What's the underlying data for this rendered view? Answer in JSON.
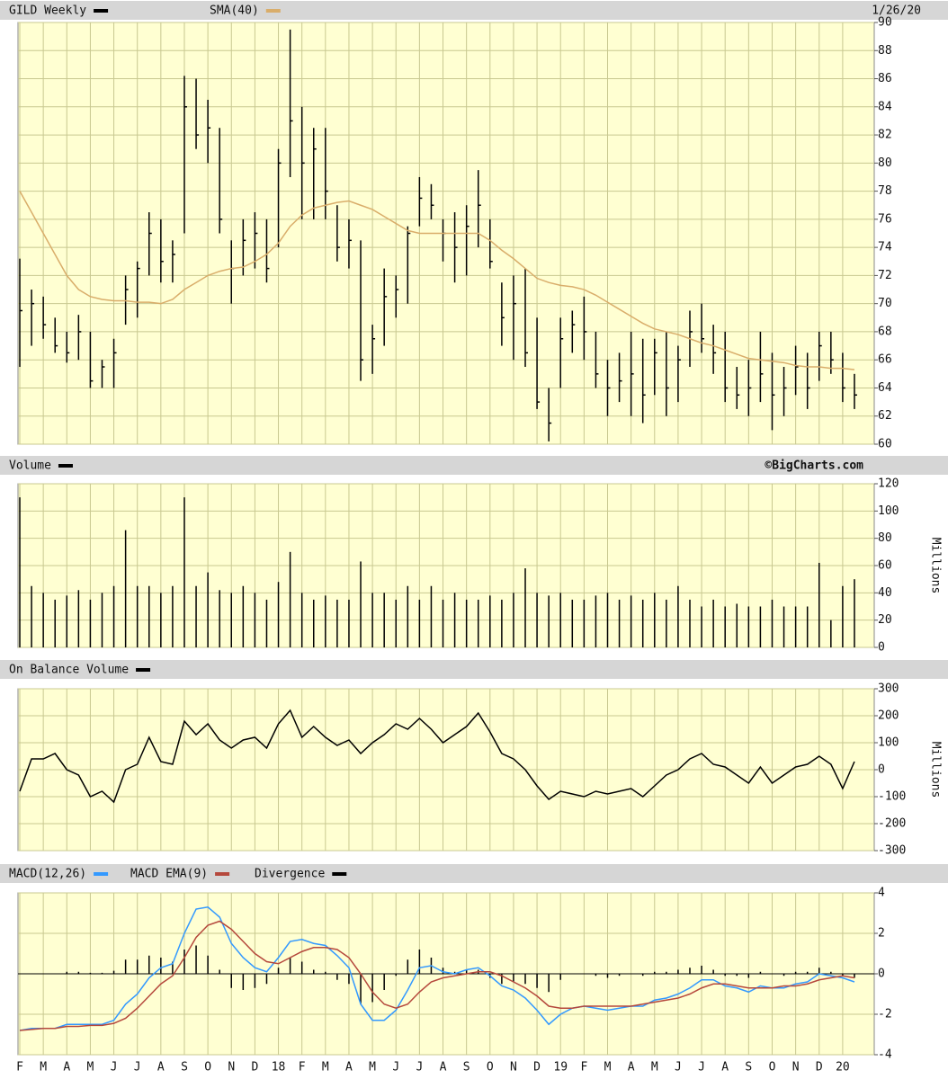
{
  "chart_data": [
    {
      "type": "ohlc",
      "date": "1/26/20",
      "series": [
        {
          "name": "GILD Weekly",
          "color": "#000000",
          "high": [
            73.2,
            71,
            70.5,
            69,
            68,
            69.2,
            68,
            66,
            67.5,
            72,
            73,
            76.5,
            76,
            74.5,
            86.2,
            86,
            84.5,
            82.5,
            74.5,
            76,
            76.5,
            76,
            81,
            89.5,
            84,
            82.5,
            82.5,
            77,
            76,
            74.5,
            68.5,
            72.5,
            72,
            75.5,
            79,
            78.5,
            76,
            76.5,
            77,
            79.5,
            76,
            71.5,
            72,
            72.5,
            69,
            64,
            69,
            69.5,
            70.5,
            68,
            66,
            66.5,
            68,
            67.5,
            67.5,
            68,
            67,
            69.5,
            70,
            68.5,
            68,
            65.5,
            66,
            68,
            66.5,
            65.5,
            67,
            66.5,
            68,
            68,
            66.5,
            65
          ],
          "low": [
            65.5,
            67,
            67.5,
            66.5,
            65.8,
            66,
            64,
            64,
            64,
            68.5,
            69,
            72,
            71.5,
            71.5,
            75,
            81,
            80,
            75,
            70,
            72,
            72.5,
            71.5,
            74,
            79,
            76,
            76,
            76,
            73,
            72.5,
            64.5,
            65,
            67,
            69,
            70,
            75.5,
            76,
            73,
            71.5,
            72,
            74,
            72.5,
            67,
            66,
            65.5,
            62.5,
            60.2,
            64,
            66.5,
            66,
            64,
            62,
            63,
            62,
            61.5,
            63.5,
            62,
            63,
            65.5,
            66.5,
            65,
            63,
            62.5,
            62,
            63,
            61,
            62,
            63.5,
            62.5,
            64.5,
            65,
            63,
            62.5
          ],
          "close": [
            69.5,
            70,
            68.5,
            67,
            66.5,
            68,
            64.5,
            65.5,
            66.5,
            71,
            72.5,
            75,
            73,
            73.5,
            84,
            82,
            82.5,
            76,
            72.5,
            74.5,
            75,
            72.5,
            80,
            83,
            80,
            81,
            78,
            74,
            74.5,
            66,
            67.5,
            70.5,
            71,
            75,
            77.5,
            77,
            75,
            74,
            75.5,
            77,
            73,
            69,
            70,
            66.5,
            63,
            61.5,
            67.5,
            68.5,
            68,
            65,
            64,
            64.5,
            65,
            63.5,
            66.5,
            64,
            66,
            68,
            67.5,
            66.5,
            64,
            63.5,
            64,
            65,
            63.5,
            64,
            65.5,
            64,
            67,
            66,
            64,
            63.5
          ]
        },
        {
          "name": "SMA(40)",
          "color": "#d9ad6a",
          "values": [
            78,
            76.5,
            75,
            73.5,
            72,
            71,
            70.5,
            70.3,
            70.2,
            70.2,
            70.1,
            70.1,
            70,
            70.3,
            71,
            71.5,
            72,
            72.3,
            72.5,
            72.6,
            73,
            73.5,
            74.3,
            75.5,
            76.3,
            76.8,
            77,
            77.2,
            77.3,
            77,
            76.7,
            76.2,
            75.7,
            75.2,
            75,
            75,
            75,
            75,
            75,
            75,
            74.5,
            73.8,
            73.2,
            72.5,
            71.8,
            71.5,
            71.3,
            71.2,
            71,
            70.6,
            70.1,
            69.6,
            69.1,
            68.6,
            68.2,
            68,
            67.8,
            67.5,
            67.2,
            67,
            66.7,
            66.4,
            66.1,
            66,
            65.9,
            65.8,
            65.6,
            65.5,
            65.5,
            65.4,
            65.4,
            65.3
          ]
        }
      ],
      "ylim": [
        60,
        90
      ],
      "yticks": [
        60,
        62,
        64,
        66,
        68,
        70,
        72,
        74,
        76,
        78,
        80,
        82,
        84,
        86,
        88,
        90
      ],
      "grid": true
    },
    {
      "type": "bar",
      "credit": "©BigCharts.com",
      "y_label": "Millions",
      "series": [
        {
          "name": "Volume",
          "color": "#000000",
          "values": [
            110,
            45,
            40,
            35,
            38,
            42,
            35,
            40,
            45,
            86,
            45,
            45,
            40,
            45,
            110,
            45,
            55,
            42,
            40,
            45,
            40,
            35,
            48,
            70,
            40,
            35,
            38,
            35,
            35,
            63,
            40,
            40,
            35,
            45,
            35,
            45,
            35,
            40,
            35,
            35,
            38,
            35,
            40,
            58,
            40,
            38,
            40,
            35,
            35,
            38,
            40,
            35,
            38,
            35,
            40,
            35,
            45,
            35,
            30,
            35,
            30,
            32,
            30,
            30,
            35,
            30,
            30,
            30,
            62,
            20,
            45,
            50
          ]
        }
      ],
      "ylim": [
        0,
        120
      ],
      "yticks": [
        0,
        20,
        40,
        60,
        80,
        100,
        120
      ],
      "grid": true
    },
    {
      "type": "line",
      "y_label": "Millions",
      "series": [
        {
          "name": "On Balance Volume",
          "color": "#000000",
          "values": [
            -80,
            40,
            40,
            60,
            0,
            -20,
            -100,
            -80,
            -120,
            0,
            20,
            120,
            30,
            20,
            180,
            130,
            170,
            110,
            80,
            110,
            120,
            80,
            170,
            220,
            120,
            160,
            120,
            90,
            110,
            60,
            100,
            130,
            170,
            150,
            190,
            150,
            100,
            130,
            160,
            210,
            140,
            60,
            40,
            0,
            -60,
            -110,
            -80,
            -90,
            -100,
            -80,
            -90,
            -80,
            -70,
            -100,
            -60,
            -20,
            0,
            40,
            60,
            20,
            10,
            -20,
            -50,
            10,
            -50,
            -20,
            10,
            20,
            50,
            20,
            -70,
            30
          ]
        }
      ],
      "ylim": [
        -300,
        300
      ],
      "yticks": [
        -300,
        -200,
        -100,
        0,
        100,
        200,
        300
      ],
      "grid": true
    },
    {
      "type": "macd",
      "categories": [
        "F",
        null,
        "M",
        null,
        "A",
        null,
        "M",
        null,
        "J",
        null,
        "J",
        null,
        "A",
        null,
        "S",
        null,
        "O",
        null,
        "N",
        null,
        "D",
        null,
        "18",
        null,
        "F",
        null,
        "M",
        null,
        "A",
        null,
        "M",
        null,
        "J",
        null,
        "J",
        null,
        "A",
        null,
        "S",
        null,
        "O",
        null,
        "N",
        null,
        "D",
        null,
        "19",
        null,
        "F",
        null,
        "M",
        null,
        "A",
        null,
        "M",
        null,
        "J",
        null,
        "J",
        null,
        "A",
        null,
        "S",
        null,
        "O",
        null,
        "N",
        null,
        "D",
        null,
        "20",
        null
      ],
      "series": [
        {
          "name": "MACD(12,26)",
          "color": "#3399ff",
          "values": [
            -2.8,
            -2.7,
            -2.7,
            -2.7,
            -2.5,
            -2.5,
            -2.5,
            -2.5,
            -2.3,
            -1.5,
            -1,
            -0.2,
            0.3,
            0.5,
            2.0,
            3.2,
            3.3,
            2.8,
            1.5,
            0.8,
            0.3,
            0.1,
            0.8,
            1.6,
            1.7,
            1.5,
            1.4,
            0.9,
            0.3,
            -1.5,
            -2.3,
            -2.3,
            -1.8,
            -0.8,
            0.3,
            0.4,
            0.1,
            0,
            0.2,
            0.3,
            -0.1,
            -0.6,
            -0.8,
            -1.2,
            -1.8,
            -2.5,
            -2.0,
            -1.7,
            -1.6,
            -1.7,
            -1.8,
            -1.7,
            -1.6,
            -1.6,
            -1.3,
            -1.2,
            -1.0,
            -0.7,
            -0.3,
            -0.3,
            -0.6,
            -0.7,
            -0.9,
            -0.6,
            -0.7,
            -0.7,
            -0.5,
            -0.4,
            0,
            -0.1,
            -0.2,
            -0.4
          ]
        },
        {
          "name": "MACD EMA(9)",
          "color": "#b5483c",
          "values": [
            -2.8,
            -2.75,
            -2.7,
            -2.7,
            -2.6,
            -2.6,
            -2.55,
            -2.55,
            -2.45,
            -2.2,
            -1.7,
            -1.1,
            -0.5,
            -0.1,
            0.8,
            1.8,
            2.4,
            2.6,
            2.2,
            1.6,
            1,
            0.6,
            0.5,
            0.8,
            1.1,
            1.3,
            1.3,
            1.2,
            0.8,
            0,
            -0.9,
            -1.5,
            -1.7,
            -1.5,
            -0.9,
            -0.4,
            -0.2,
            -0.1,
            0,
            0.1,
            0.1,
            -0.1,
            -0.4,
            -0.7,
            -1.1,
            -1.6,
            -1.7,
            -1.7,
            -1.6,
            -1.6,
            -1.6,
            -1.6,
            -1.6,
            -1.5,
            -1.4,
            -1.3,
            -1.2,
            -1.0,
            -0.7,
            -0.5,
            -0.5,
            -0.6,
            -0.7,
            -0.7,
            -0.7,
            -0.6,
            -0.6,
            -0.5,
            -0.3,
            -0.2,
            -0.1,
            -0.2
          ]
        },
        {
          "name": "Divergence",
          "color": "#000000",
          "style": "bars",
          "values": [
            0,
            0,
            0,
            0,
            0.1,
            0.1,
            0.05,
            0.05,
            0.15,
            0.7,
            0.7,
            0.9,
            0.8,
            0.6,
            1.2,
            1.4,
            0.9,
            0.2,
            -0.7,
            -0.8,
            -0.7,
            -0.5,
            0.3,
            0.8,
            0.6,
            0.2,
            0.1,
            -0.3,
            -0.5,
            -1.5,
            -1.4,
            -0.8,
            -0.1,
            0.7,
            1.2,
            0.8,
            0.3,
            0.1,
            0.2,
            0.2,
            -0.2,
            -0.5,
            -0.4,
            -0.5,
            -0.7,
            -0.9,
            -0.3,
            0,
            0,
            -0.1,
            -0.2,
            -0.1,
            0,
            -0.1,
            0.1,
            0.1,
            0.2,
            0.3,
            0.4,
            0.2,
            -0.1,
            -0.1,
            -0.2,
            0.1,
            0,
            -0.1,
            0.1,
            0.1,
            0.3,
            0.1,
            -0.1,
            -0.2
          ]
        }
      ],
      "ylim": [
        -4,
        4
      ],
      "yticks": [
        -4,
        -2,
        0,
        2,
        4
      ],
      "grid": true
    }
  ]
}
